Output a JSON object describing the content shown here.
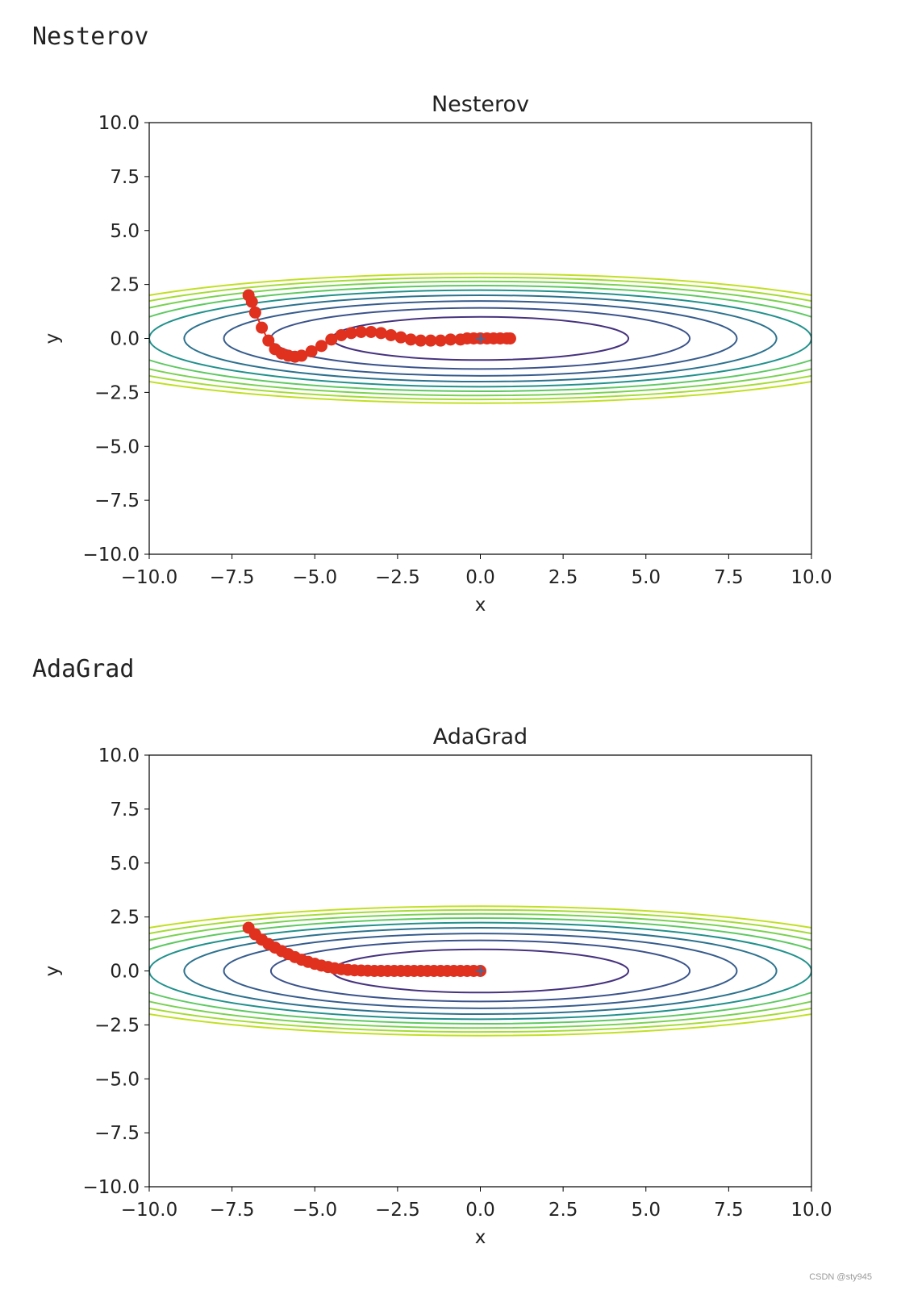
{
  "cells": [
    {
      "label": "Nesterov"
    },
    {
      "label": "AdaGrad"
    }
  ],
  "watermark": "CSDN @sty945",
  "chart_data": [
    {
      "type": "line",
      "title": "Nesterov",
      "xlabel": "x",
      "ylabel": "y",
      "xlim": [
        -10,
        10
      ],
      "ylim": [
        -10,
        10
      ],
      "xticks": [
        "−10.0",
        "−7.5",
        "−5.0",
        "−2.5",
        "0.0",
        "2.5",
        "5.0",
        "7.5",
        "10.0"
      ],
      "yticks": [
        "10.0",
        "7.5",
        "5.0",
        "2.5",
        "0.0",
        "−2.5",
        "−5.0",
        "−7.5",
        "−10.0"
      ],
      "contour": {
        "function": "x^2/20 + y^2",
        "levels": [
          1,
          2,
          3,
          4,
          5,
          6,
          7,
          8,
          9
        ],
        "colors": [
          "#46327e",
          "#3b528b",
          "#365c8d",
          "#2c728e",
          "#21918c",
          "#5ec962",
          "#7ad151",
          "#a5db36",
          "#c2df23"
        ]
      },
      "minimum_marker": {
        "x": 0,
        "y": 0,
        "color": "#1f77b4"
      },
      "path_color": "#e0301e",
      "path": {
        "x": [
          -7.0,
          -6.9,
          -6.8,
          -6.6,
          -6.4,
          -6.2,
          -6.0,
          -5.8,
          -5.6,
          -5.4,
          -5.1,
          -4.8,
          -4.5,
          -4.2,
          -3.9,
          -3.6,
          -3.3,
          -3.0,
          -2.7,
          -2.4,
          -2.1,
          -1.8,
          -1.5,
          -1.2,
          -0.9,
          -0.6,
          -0.4,
          -0.2,
          0.0,
          0.2,
          0.4,
          0.6,
          0.8,
          0.9
        ],
        "y": [
          2.0,
          1.7,
          1.2,
          0.5,
          -0.1,
          -0.5,
          -0.7,
          -0.8,
          -0.85,
          -0.8,
          -0.6,
          -0.35,
          -0.05,
          0.15,
          0.25,
          0.3,
          0.3,
          0.25,
          0.15,
          0.05,
          -0.05,
          -0.1,
          -0.1,
          -0.1,
          -0.05,
          -0.05,
          0.0,
          0.0,
          0.0,
          0.0,
          0.0,
          0.0,
          0.0,
          0.0
        ]
      }
    },
    {
      "type": "line",
      "title": "AdaGrad",
      "xlabel": "x",
      "ylabel": "y",
      "xlim": [
        -10,
        10
      ],
      "ylim": [
        -10,
        10
      ],
      "xticks": [
        "−10.0",
        "−7.5",
        "−5.0",
        "−2.5",
        "0.0",
        "2.5",
        "5.0",
        "7.5",
        "10.0"
      ],
      "yticks": [
        "10.0",
        "7.5",
        "5.0",
        "2.5",
        "0.0",
        "−2.5",
        "−5.0",
        "−7.5",
        "−10.0"
      ],
      "contour": {
        "function": "x^2/20 + y^2",
        "levels": [
          1,
          2,
          3,
          4,
          5,
          6,
          7,
          8,
          9
        ],
        "colors": [
          "#46327e",
          "#3b528b",
          "#365c8d",
          "#2c728e",
          "#21918c",
          "#5ec962",
          "#7ad151",
          "#a5db36",
          "#c2df23"
        ]
      },
      "minimum_marker": {
        "x": 0,
        "y": 0,
        "color": "#1f77b4"
      },
      "path_color": "#e0301e",
      "path": {
        "x": [
          -7.0,
          -6.8,
          -6.6,
          -6.4,
          -6.2,
          -6.0,
          -5.8,
          -5.6,
          -5.4,
          -5.2,
          -5.0,
          -4.8,
          -4.6,
          -4.4,
          -4.2,
          -4.0,
          -3.8,
          -3.6,
          -3.4,
          -3.2,
          -3.0,
          -2.8,
          -2.6,
          -2.4,
          -2.2,
          -2.0,
          -1.8,
          -1.6,
          -1.4,
          -1.2,
          -1.0,
          -0.8,
          -0.6,
          -0.4,
          -0.2,
          0.0
        ],
        "y": [
          2.0,
          1.7,
          1.45,
          1.25,
          1.08,
          0.92,
          0.78,
          0.64,
          0.52,
          0.42,
          0.33,
          0.25,
          0.18,
          0.12,
          0.08,
          0.05,
          0.03,
          0.02,
          0.01,
          0.0,
          0.0,
          0.0,
          0.0,
          0.0,
          0.0,
          0.0,
          0.0,
          0.0,
          0.0,
          0.0,
          0.0,
          0.0,
          0.0,
          0.0,
          0.0,
          0.0
        ]
      }
    }
  ]
}
